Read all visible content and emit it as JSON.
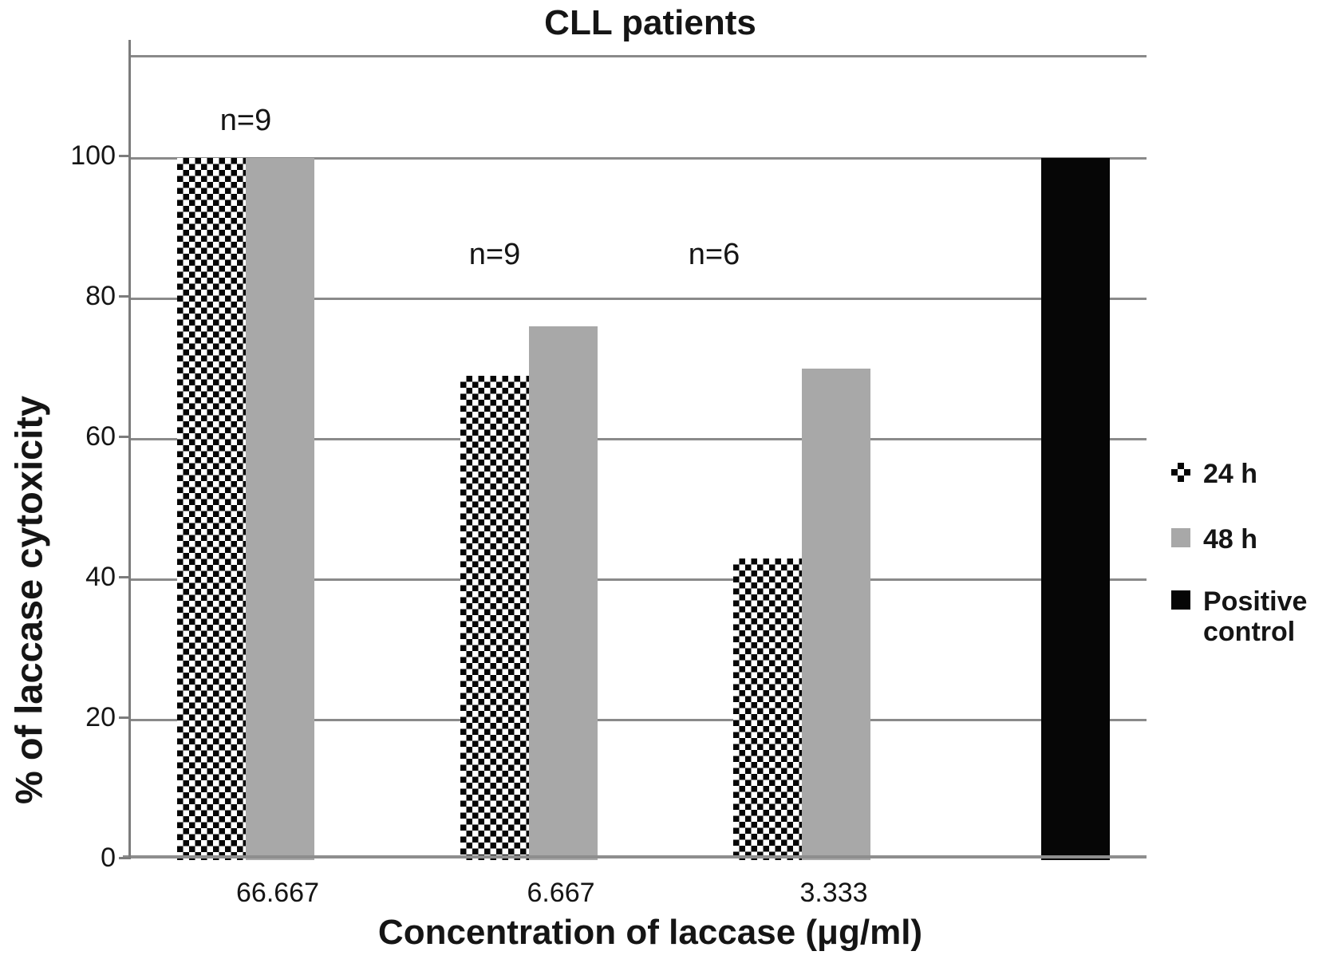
{
  "title": "CLL patients",
  "y_axis": {
    "label": "% of laccase cytoxicity",
    "tick_labels": [
      "100",
      "80",
      "60",
      "40",
      "20",
      "0"
    ],
    "tick_values": [
      100,
      80,
      60,
      40,
      20,
      0
    ]
  },
  "x_axis": {
    "label": "Concentration of laccase (μg/ml)",
    "tick_labels": [
      "66.667",
      "6.667",
      "3.333"
    ]
  },
  "legend": {
    "items": [
      {
        "label": "24 h",
        "swatch": "checker"
      },
      {
        "label": "48 h",
        "swatch": "gray"
      },
      {
        "label": "Positive control",
        "swatch": "black"
      }
    ]
  },
  "colors": {
    "bar_gray": "#a8a8a8",
    "bar_black": "#060606",
    "gridline": "#8a8a8a",
    "axis_line": "#7c7c7c",
    "text": "#151515"
  },
  "chart_data": {
    "type": "bar",
    "title": "CLL patients",
    "xlabel": "Concentration of laccase (μg/ml)",
    "ylabel": "% of laccase cytoxicity",
    "categories": [
      "66.667",
      "6.667",
      "3.333",
      "Positive control"
    ],
    "series": [
      {
        "name": "24 h",
        "style": "checker",
        "values": [
          100,
          69,
          43,
          null
        ]
      },
      {
        "name": "48 h",
        "style": "gray",
        "values": [
          100,
          76,
          70,
          null
        ]
      },
      {
        "name": "Positive control",
        "style": "black",
        "values": [
          null,
          null,
          null,
          100
        ]
      }
    ],
    "annotations": [
      {
        "text": "n=9",
        "category": "66.667"
      },
      {
        "text": "n=9",
        "category": "6.667"
      },
      {
        "text": "n=6",
        "category": "3.333"
      }
    ],
    "ylim": [
      0,
      114
    ],
    "y_gridlines": [
      0,
      20,
      40,
      60,
      80,
      100
    ],
    "grid": "horizontal",
    "legend_position": "right"
  }
}
